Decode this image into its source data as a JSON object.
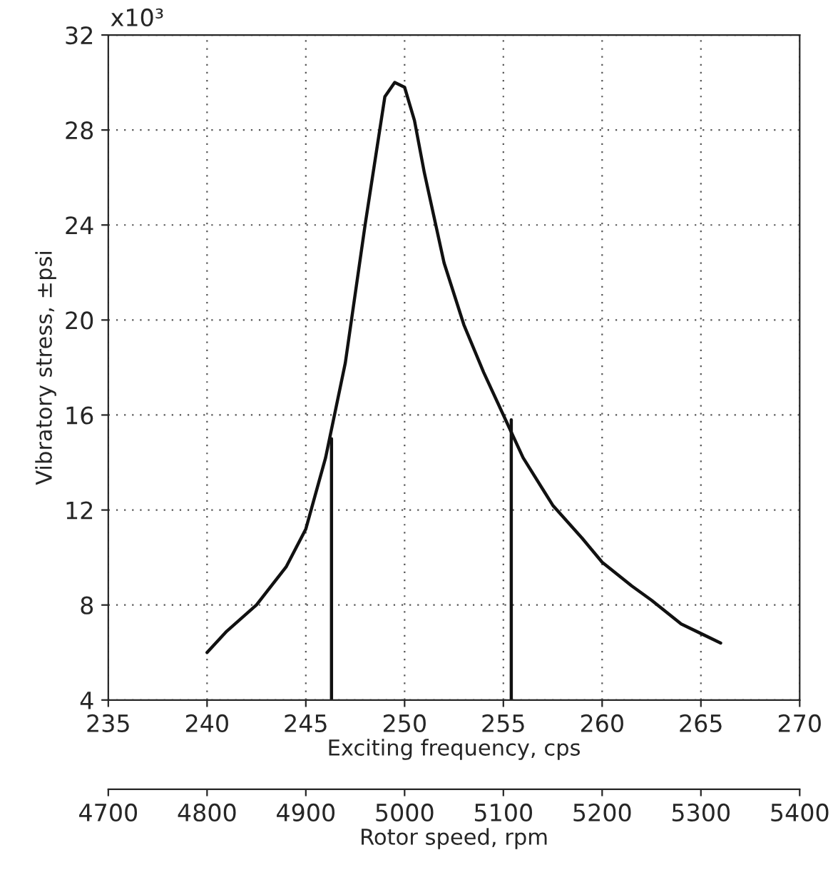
{
  "chart_data": {
    "type": "line",
    "xlabel": "Exciting frequency, cps",
    "ylabel": "Vibratory stress, ±psi",
    "x2label": "Rotor speed, rpm",
    "series": [
      {
        "color": "#111111",
        "x": [
          240,
          241,
          242.5,
          244,
          245,
          246,
          247,
          248,
          249,
          249.5,
          250,
          250.5,
          251,
          252,
          253,
          254,
          255,
          256,
          257.5,
          259,
          260,
          261.5,
          262.5,
          264,
          265,
          266
        ],
        "values": [
          6,
          6.9,
          8,
          9.6,
          11.2,
          14.2,
          18.2,
          24,
          29.4,
          30,
          29.8,
          28.4,
          26.2,
          22.4,
          19.8,
          17.8,
          16,
          14.2,
          12.2,
          10.8,
          9.8,
          8.8,
          8.2,
          7.2,
          6.8,
          6.4
        ]
      },
      {
        "color": "#111111",
        "x": [
          246.3,
          246.3
        ],
        "values": [
          4,
          15
        ]
      },
      {
        "color": "#111111",
        "x": [
          255.4,
          255.4
        ],
        "values": [
          4,
          15.8
        ]
      }
    ],
    "xlim": [
      235,
      270
    ],
    "xticks": [
      235,
      240,
      245,
      250,
      255,
      260,
      265,
      270
    ],
    "ylim": [
      4,
      32
    ],
    "yticks": [
      4,
      8,
      12,
      16,
      20,
      24,
      28,
      32
    ],
    "annotations": [
      "x10³"
    ],
    "x2lim": [
      4700,
      5400
    ],
    "x2ticks": [
      4700,
      4800,
      4900,
      5000,
      5100,
      5200,
      5300,
      5400
    ],
    "grid": true,
    "marker": "none",
    "line_style": "solid",
    "legend": false
  }
}
